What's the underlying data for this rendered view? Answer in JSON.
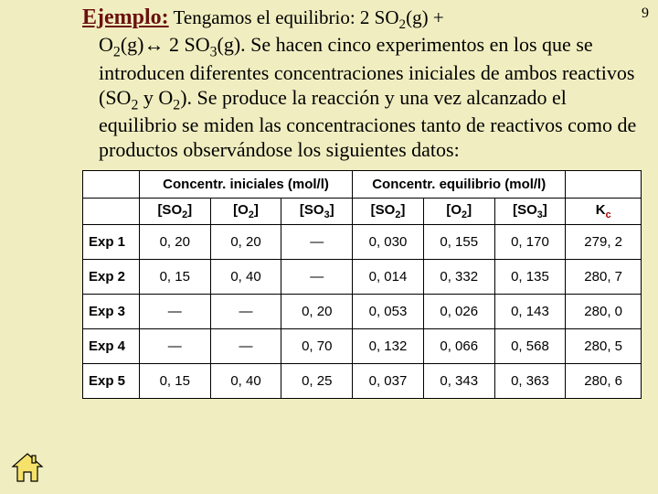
{
  "page_number": "9",
  "heading": "Ejemplo:",
  "reaction_prefix": " Tengamos el equilibrio: 2 SO",
  "reaction_mid1": "(g) + ",
  "reaction_line2a": "O",
  "reaction_line2b": "(g)",
  "arrow": "↔",
  "reaction_line2c": " 2 SO",
  "reaction_line2d": "(g). Se hacen cinco experimentos en los que se introducen diferentes concentraciones iniciales de ambos reactivos (SO",
  "reaction_line2e": " y O",
  "reaction_line2f": "). Se produce la reacción y una vez alcanzado el equilibrio se miden las concentraciones tanto de reactivos como de productos observándose los siguientes datos:",
  "table": {
    "group_headers": {
      "initial": "Concentr. iniciales (mol/l)",
      "equilibrium": "Concentr. equilibrio (mol/l)"
    },
    "col_headers": [
      "[SO2]",
      "[O2]",
      "[SO3]",
      "[SO2]",
      "[O2]",
      "[SO3]",
      "Kc"
    ],
    "rows": [
      {
        "label": "Exp 1",
        "cells": [
          "0, 20",
          "0, 20",
          "—",
          "0, 030",
          "0, 155",
          "0, 170",
          "279, 2"
        ]
      },
      {
        "label": "Exp 2",
        "cells": [
          "0, 15",
          "0, 40",
          "—",
          "0, 014",
          "0, 332",
          "0, 135",
          "280, 7"
        ]
      },
      {
        "label": "Exp 3",
        "cells": [
          "—",
          "—",
          "0, 20",
          "0, 053",
          "0, 026",
          "0, 143",
          "280, 0"
        ]
      },
      {
        "label": "Exp 4",
        "cells": [
          "—",
          "—",
          "0, 70",
          "0, 132",
          "0, 066",
          "0, 568",
          "280, 5"
        ]
      },
      {
        "label": "Exp 5",
        "cells": [
          "0, 15",
          "0, 40",
          "0, 25",
          "0, 037",
          "0, 343",
          "0, 363",
          "280, 6"
        ]
      }
    ]
  },
  "colors": {
    "background": "#f0eec0",
    "heading": "#6b1010",
    "table_bg": "#ffffff",
    "border": "#000000"
  }
}
